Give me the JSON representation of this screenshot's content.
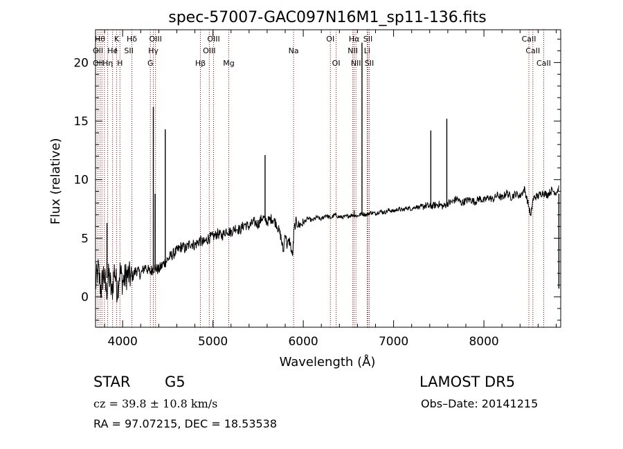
{
  "chart_data": {
    "type": "line",
    "title": "spec-57007-GAC097N16M1_sp11-136.fits",
    "xlabel": "Wavelength (Å)",
    "ylabel": "Flux (relative)",
    "xlim": [
      3700,
      8850
    ],
    "ylim": [
      -2.6,
      22.8
    ],
    "xticks": [
      4000,
      5000,
      6000,
      7000,
      8000
    ],
    "yticks": [
      0,
      5,
      10,
      15,
      20
    ],
    "grid": false,
    "line_color": "#000000",
    "marker_color": "#8b0000",
    "spectrum": {
      "x": [
        3700,
        3730,
        3760,
        3790,
        3820,
        3850,
        3880,
        3910,
        3940,
        3970,
        4000,
        4050,
        4100,
        4150,
        4200,
        4250,
        4300,
        4350,
        4400,
        4450,
        4500,
        4550,
        4600,
        4650,
        4700,
        4750,
        4800,
        4850,
        4900,
        4950,
        5000,
        5050,
        5100,
        5150,
        5200,
        5250,
        5300,
        5350,
        5400,
        5450,
        5500,
        5550,
        5600,
        5650,
        5700,
        5750,
        5780,
        5800,
        5820,
        5850,
        5880,
        5900,
        5920,
        5950,
        6000,
        6050,
        6100,
        6150,
        6200,
        6250,
        6300,
        6350,
        6400,
        6450,
        6500,
        6550,
        6600,
        6650,
        6700,
        6750,
        6800,
        6850,
        6900,
        6950,
        7000,
        7050,
        7100,
        7150,
        7200,
        7250,
        7300,
        7350,
        7400,
        7450,
        7500,
        7550,
        7600,
        7650,
        7700,
        7750,
        7800,
        7850,
        7900,
        7950,
        8000,
        8050,
        8100,
        8150,
        8200,
        8250,
        8300,
        8350,
        8400,
        8450,
        8500,
        8520,
        8540,
        8560,
        8600,
        8650,
        8700,
        8750,
        8800,
        8830,
        8850
      ],
      "y": [
        1.0,
        2.3,
        0.6,
        2.1,
        0.4,
        1.9,
        0.2,
        2.4,
        0.5,
        2.2,
        1.3,
        1.9,
        1.6,
        2.3,
        1.9,
        2.6,
        2.1,
        2.5,
        2.3,
        2.8,
        3.2,
        3.6,
        3.9,
        4.3,
        4.1,
        4.6,
        4.4,
        4.8,
        4.6,
        5.0,
        5.1,
        5.4,
        5.2,
        5.7,
        5.5,
        5.9,
        5.7,
        6.2,
        6.0,
        6.4,
        6.2,
        6.8,
        6.4,
        6.7,
        6.3,
        5.2,
        3.8,
        5.6,
        4.4,
        4.8,
        3.4,
        5.8,
        6.4,
        6.1,
        6.3,
        6.7,
        6.5,
        6.8,
        6.6,
        7.0,
        6.7,
        7.0,
        6.8,
        6.8,
        6.9,
        7.0,
        6.9,
        7.1,
        7.0,
        7.2,
        7.1,
        7.3,
        7.2,
        7.4,
        7.3,
        7.5,
        7.4,
        7.6,
        7.5,
        7.7,
        7.6,
        7.8,
        7.7,
        7.8,
        7.9,
        7.7,
        8.0,
        8.1,
        8.4,
        8.0,
        8.2,
        8.3,
        8.1,
        8.4,
        8.2,
        8.5,
        8.3,
        8.7,
        8.4,
        8.9,
        8.5,
        8.8,
        8.6,
        9.2,
        7.6,
        6.8,
        8.2,
        8.5,
        8.6,
        8.9,
        8.7,
        9.1,
        8.9,
        9.3,
        8.8
      ]
    },
    "emission_lines": [
      {
        "x": 3827,
        "base": 1.6,
        "peak": 6.3
      },
      {
        "x": 4340,
        "base": 2.3,
        "peak": 16.2
      },
      {
        "x": 4360,
        "base": 2.3,
        "peak": 8.8
      },
      {
        "x": 4472,
        "base": 2.8,
        "peak": 14.3
      },
      {
        "x": 5577,
        "base": 6.5,
        "peak": 12.1
      },
      {
        "x": 6563,
        "base": 6.9,
        "peak": 7.4
      },
      {
        "x": 6650,
        "base": 7.0,
        "peak": 21.7
      },
      {
        "x": 7412,
        "base": 7.6,
        "peak": 14.2
      },
      {
        "x": 7589,
        "base": 7.8,
        "peak": 15.2
      },
      {
        "x": 8830,
        "base": 8.8,
        "peak": 0.7
      }
    ],
    "line_markers": {
      "wavelengths": [
        3727,
        3750,
        3771,
        3798,
        3835,
        3889,
        3934,
        3970,
        4102,
        4307,
        4340,
        4364,
        4861,
        4959,
        5007,
        5175,
        5893,
        6300,
        6364,
        6548,
        6563,
        6583,
        6707,
        6716,
        6731,
        8498,
        8542,
        8662
      ],
      "labels": [
        {
          "text": "Hθ",
          "x": 3750,
          "row": 1
        },
        {
          "text": "K",
          "x": 3934,
          "row": 1
        },
        {
          "text": "Hδ",
          "x": 4102,
          "row": 1
        },
        {
          "text": "OIII",
          "x": 4364,
          "row": 1
        },
        {
          "text": "OIII",
          "x": 5007,
          "row": 1
        },
        {
          "text": "OI",
          "x": 6300,
          "row": 1
        },
        {
          "text": "Hα",
          "x": 6563,
          "row": 1
        },
        {
          "text": "SII",
          "x": 6716,
          "row": 1
        },
        {
          "text": "CaII",
          "x": 8498,
          "row": 1
        },
        {
          "text": "OII",
          "x": 3727,
          "row": 2
        },
        {
          "text": "He",
          "x": 3889,
          "row": 2
        },
        {
          "text": "I",
          "x": 3925,
          "row": 2
        },
        {
          "text": "SII",
          "x": 4069,
          "row": 2
        },
        {
          "text": "Hγ",
          "x": 4340,
          "row": 2
        },
        {
          "text": "OIII",
          "x": 4959,
          "row": 2
        },
        {
          "text": "Na",
          "x": 5893,
          "row": 2
        },
        {
          "text": "NII",
          "x": 6548,
          "row": 2
        },
        {
          "text": "Li",
          "x": 6707,
          "row": 2
        },
        {
          "text": "CaII",
          "x": 8542,
          "row": 2
        },
        {
          "text": "OII",
          "x": 3727,
          "row": 3
        },
        {
          "text": "Hη",
          "x": 3835,
          "row": 3
        },
        {
          "text": "H",
          "x": 3970,
          "row": 3
        },
        {
          "text": "G",
          "x": 4307,
          "row": 3
        },
        {
          "text": "Hβ",
          "x": 4861,
          "row": 3
        },
        {
          "text": "Mg",
          "x": 5175,
          "row": 3
        },
        {
          "text": "OI",
          "x": 6364,
          "row": 3
        },
        {
          "text": "NII",
          "x": 6583,
          "row": 3
        },
        {
          "text": "SII",
          "x": 6731,
          "row": 3
        },
        {
          "text": "CaII",
          "x": 8662,
          "row": 3
        }
      ]
    }
  },
  "info": {
    "object_class": "STAR",
    "subclass": "G5",
    "survey": "LAMOST DR5",
    "redshift": "cz = 39.8 ± 10.8 km/s",
    "obs_date": "Obs–Date: 20141215",
    "coords": "RA =  97.07215, DEC =  18.53538"
  }
}
